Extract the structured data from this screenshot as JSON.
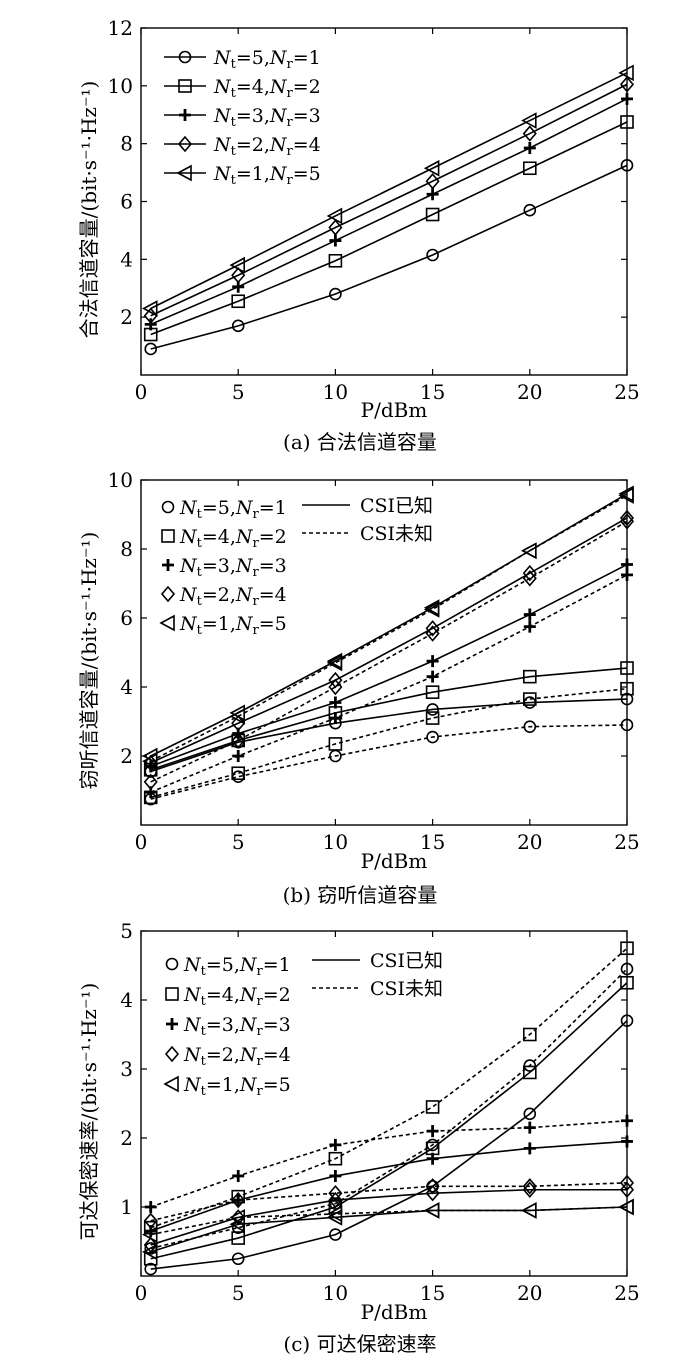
{
  "chart_data": [
    {
      "type": "line",
      "panel": "a",
      "caption": "(a) 合法信道容量",
      "ylabel": "合法信道容量/(bit·s⁻¹·Hz⁻¹)",
      "xlabel": "P/dBm",
      "xlim": [
        0,
        25
      ],
      "ylim": [
        0,
        12
      ],
      "xticks": [
        "0",
        "5",
        "10",
        "15",
        "20",
        "25"
      ],
      "yticks": [
        "2",
        "4",
        "6",
        "8",
        "10",
        "12"
      ],
      "legend": {
        "position": "top-left"
      },
      "x": [
        0.5,
        5,
        10,
        15,
        20,
        25
      ],
      "series": [
        {
          "name": "Nt=5,Nr=1",
          "nt": "5",
          "nr": "1",
          "marker": "circle",
          "style": "solid",
          "values": [
            0.9,
            1.7,
            2.8,
            4.15,
            5.7,
            7.25
          ]
        },
        {
          "name": "Nt=4,Nr=2",
          "nt": "4",
          "nr": "2",
          "marker": "square",
          "style": "solid",
          "values": [
            1.4,
            2.55,
            3.95,
            5.55,
            7.15,
            8.75
          ]
        },
        {
          "name": "Nt=3,Nr=3",
          "nt": "3",
          "nr": "3",
          "marker": "plus",
          "style": "solid",
          "values": [
            1.75,
            3.05,
            4.65,
            6.25,
            7.85,
            9.55
          ]
        },
        {
          "name": "Nt=2,Nr=4",
          "nt": "2",
          "nr": "4",
          "marker": "diamond",
          "style": "solid",
          "values": [
            2.05,
            3.45,
            5.1,
            6.7,
            8.35,
            10.05
          ]
        },
        {
          "name": "Nt=1,Nr=5",
          "nt": "1",
          "nr": "5",
          "marker": "triangle-left",
          "style": "solid",
          "values": [
            2.3,
            3.8,
            5.5,
            7.15,
            8.8,
            10.45
          ]
        }
      ]
    },
    {
      "type": "line",
      "panel": "b",
      "caption": "(b) 窃听信道容量",
      "ylabel": "窃听信道容量/(bit·s⁻¹·Hz⁻¹)",
      "xlabel": "P/dBm",
      "xlim": [
        0,
        25
      ],
      "ylim": [
        0,
        10
      ],
      "xticks": [
        "0",
        "5",
        "10",
        "15",
        "20",
        "25"
      ],
      "yticks": [
        "2",
        "4",
        "6",
        "8",
        "10"
      ],
      "legend": {
        "position": "top-left"
      },
      "style_legend": [
        {
          "label": "CSI已知",
          "style": "solid"
        },
        {
          "label": "CSI未知",
          "style": "dashed"
        }
      ],
      "x": [
        0.5,
        5,
        10,
        15,
        20,
        25
      ],
      "series": [
        {
          "name": "Nt=5,Nr=1 CSI已知",
          "nt": "5",
          "nr": "1",
          "marker": "circle",
          "style": "solid",
          "values": [
            1.55,
            2.4,
            2.95,
            3.35,
            3.55,
            3.65
          ]
        },
        {
          "name": "Nt=5,Nr=1 CSI未知",
          "nt": "5",
          "nr": "1",
          "marker": "circle",
          "style": "dashed",
          "values": [
            0.75,
            1.4,
            2.0,
            2.55,
            2.85,
            2.9
          ]
        },
        {
          "name": "Nt=4,Nr=2 CSI已知",
          "nt": "4",
          "nr": "2",
          "marker": "square",
          "style": "solid",
          "values": [
            1.6,
            2.45,
            3.25,
            3.85,
            4.3,
            4.55
          ]
        },
        {
          "name": "Nt=4,Nr=2 CSI未知",
          "nt": "4",
          "nr": "2",
          "marker": "square",
          "style": "dashed",
          "values": [
            0.8,
            1.5,
            2.35,
            3.1,
            3.65,
            3.95
          ]
        },
        {
          "name": "Nt=3,Nr=3 CSI已知",
          "nt": "3",
          "nr": "3",
          "marker": "plus",
          "style": "solid",
          "values": [
            1.7,
            2.65,
            3.55,
            4.75,
            6.1,
            7.55
          ]
        },
        {
          "name": "Nt=3,Nr=3 CSI未知",
          "nt": "3",
          "nr": "3",
          "marker": "plus",
          "style": "dashed",
          "values": [
            0.95,
            2.0,
            3.1,
            4.3,
            5.75,
            7.25
          ]
        },
        {
          "name": "Nt=2,Nr=4 CSI已知",
          "nt": "2",
          "nr": "4",
          "marker": "diamond",
          "style": "solid",
          "values": [
            1.8,
            2.95,
            4.2,
            5.7,
            7.3,
            8.9
          ]
        },
        {
          "name": "Nt=2,Nr=4 CSI未知",
          "nt": "2",
          "nr": "4",
          "marker": "diamond",
          "style": "dashed",
          "values": [
            1.25,
            2.45,
            4.0,
            5.55,
            7.15,
            8.8
          ]
        },
        {
          "name": "Nt=1,Nr=5 CSI已知",
          "nt": "1",
          "nr": "5",
          "marker": "triangle-left",
          "style": "solid",
          "values": [
            2.0,
            3.25,
            4.75,
            6.3,
            7.95,
            9.6
          ]
        },
        {
          "name": "Nt=1,Nr=5 CSI未知",
          "nt": "1",
          "nr": "5",
          "marker": "triangle-left",
          "style": "dashed",
          "values": [
            1.85,
            3.15,
            4.7,
            6.25,
            7.95,
            9.55
          ]
        }
      ]
    },
    {
      "type": "line",
      "panel": "c",
      "caption": "(c) 可达保密速率",
      "ylabel": "可达保密速率/(bit·s⁻¹·Hz⁻¹)",
      "xlabel": "P/dBm",
      "xlim": [
        0,
        25
      ],
      "ylim": [
        0,
        5
      ],
      "xticks": [
        "0",
        "5",
        "10",
        "15",
        "20",
        "25"
      ],
      "yticks": [
        "1",
        "2",
        "3",
        "4",
        "5"
      ],
      "legend": {
        "position": "top-left"
      },
      "style_legend": [
        {
          "label": "CSI已知",
          "style": "solid"
        },
        {
          "label": "CSI未知",
          "style": "dashed"
        }
      ],
      "x": [
        0.5,
        5,
        10,
        15,
        20,
        25
      ],
      "series": [
        {
          "name": "Nt=5,Nr=1 CSI已知",
          "nt": "5",
          "nr": "1",
          "marker": "circle",
          "style": "solid",
          "values": [
            0.1,
            0.25,
            0.6,
            1.3,
            2.35,
            3.7
          ]
        },
        {
          "name": "Nt=5,Nr=1 CSI未知",
          "nt": "5",
          "nr": "1",
          "marker": "circle",
          "style": "dashed",
          "values": [
            0.4,
            0.7,
            1.05,
            1.9,
            3.05,
            4.45
          ]
        },
        {
          "name": "Nt=4,Nr=2 CSI已知",
          "nt": "4",
          "nr": "2",
          "marker": "square",
          "style": "solid",
          "values": [
            0.25,
            0.55,
            1.0,
            1.85,
            2.95,
            4.25
          ]
        },
        {
          "name": "Nt=4,Nr=2 CSI未知",
          "nt": "4",
          "nr": "2",
          "marker": "square",
          "style": "dashed",
          "values": [
            0.7,
            1.15,
            1.7,
            2.45,
            3.5,
            4.75
          ]
        },
        {
          "name": "Nt=3,Nr=3 CSI已知",
          "nt": "3",
          "nr": "3",
          "marker": "plus",
          "style": "solid",
          "values": [
            0.65,
            1.1,
            1.45,
            1.7,
            1.85,
            1.95
          ]
        },
        {
          "name": "Nt=3,Nr=3 CSI未知",
          "nt": "3",
          "nr": "3",
          "marker": "plus",
          "style": "dashed",
          "values": [
            1.0,
            1.45,
            1.9,
            2.1,
            2.15,
            2.25
          ]
        },
        {
          "name": "Nt=2,Nr=4 CSI已知",
          "nt": "2",
          "nr": "4",
          "marker": "diamond",
          "style": "solid",
          "values": [
            0.45,
            0.85,
            1.1,
            1.2,
            1.25,
            1.25
          ]
        },
        {
          "name": "Nt=2,Nr=4 CSI未知",
          "nt": "2",
          "nr": "4",
          "marker": "diamond",
          "style": "dashed",
          "values": [
            0.8,
            1.1,
            1.2,
            1.3,
            1.3,
            1.35
          ]
        },
        {
          "name": "Nt=1,Nr=5 CSI已知",
          "nt": "1",
          "nr": "5",
          "marker": "triangle-left",
          "style": "solid",
          "values": [
            0.35,
            0.75,
            0.85,
            0.95,
            0.95,
            1.0
          ]
        },
        {
          "name": "Nt=1,Nr=5 CSI未知",
          "nt": "1",
          "nr": "5",
          "marker": "triangle-left",
          "style": "dashed",
          "values": [
            0.6,
            0.85,
            0.9,
            0.95,
            0.95,
            1.0
          ]
        }
      ]
    }
  ]
}
